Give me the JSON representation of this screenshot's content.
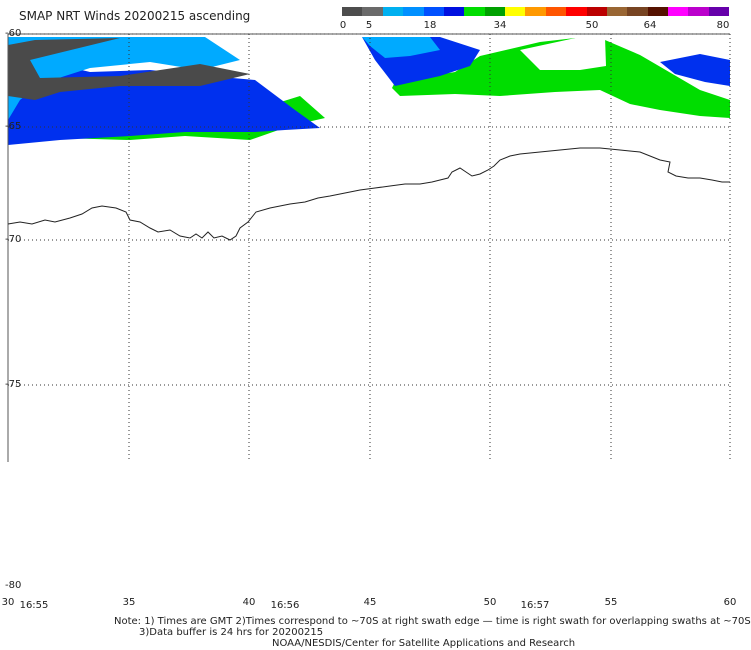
{
  "title": "SMAP NRT Winds 20200215 ascending",
  "colorbar": {
    "ticks": [
      "0",
      "5",
      "18",
      "34",
      "50",
      "64",
      "80"
    ],
    "colors": [
      "#4d4d4d",
      "#6a6a6a",
      "#00b0f0",
      "#0090ff",
      "#0050ff",
      "#0010e0",
      "#00dd00",
      "#00a000",
      "#ffff00",
      "#ff9900",
      "#ff5500",
      "#ff0000",
      "#bb0000",
      "#996633",
      "#774422",
      "#551100",
      "#ff00ff",
      "#bb00cc",
      "#6600aa"
    ]
  },
  "map": {
    "lat_labels": [
      "-60",
      "-65",
      "-70",
      "-75",
      "-80"
    ],
    "lon_labels": [
      "30",
      "35",
      "40",
      "45",
      "50",
      "55",
      "60"
    ],
    "time_labels": [
      "16:55",
      "16:56",
      "16:57"
    ],
    "wind_colors": {
      "calm": "#4a4a4a",
      "light": "#00aaff",
      "moderate": "#0030ee",
      "strong": "#00dd00"
    }
  },
  "notes": {
    "line1": "Note: 1) Times are GMT 2)Times correspond to ~70S at right swath edge — time is right swath for overlapping swaths at ~70S",
    "line2": "3)Data buffer is 24 hrs for 20200215",
    "line3": "NOAA/NESDIS/Center for Satellite Applications and Research"
  }
}
